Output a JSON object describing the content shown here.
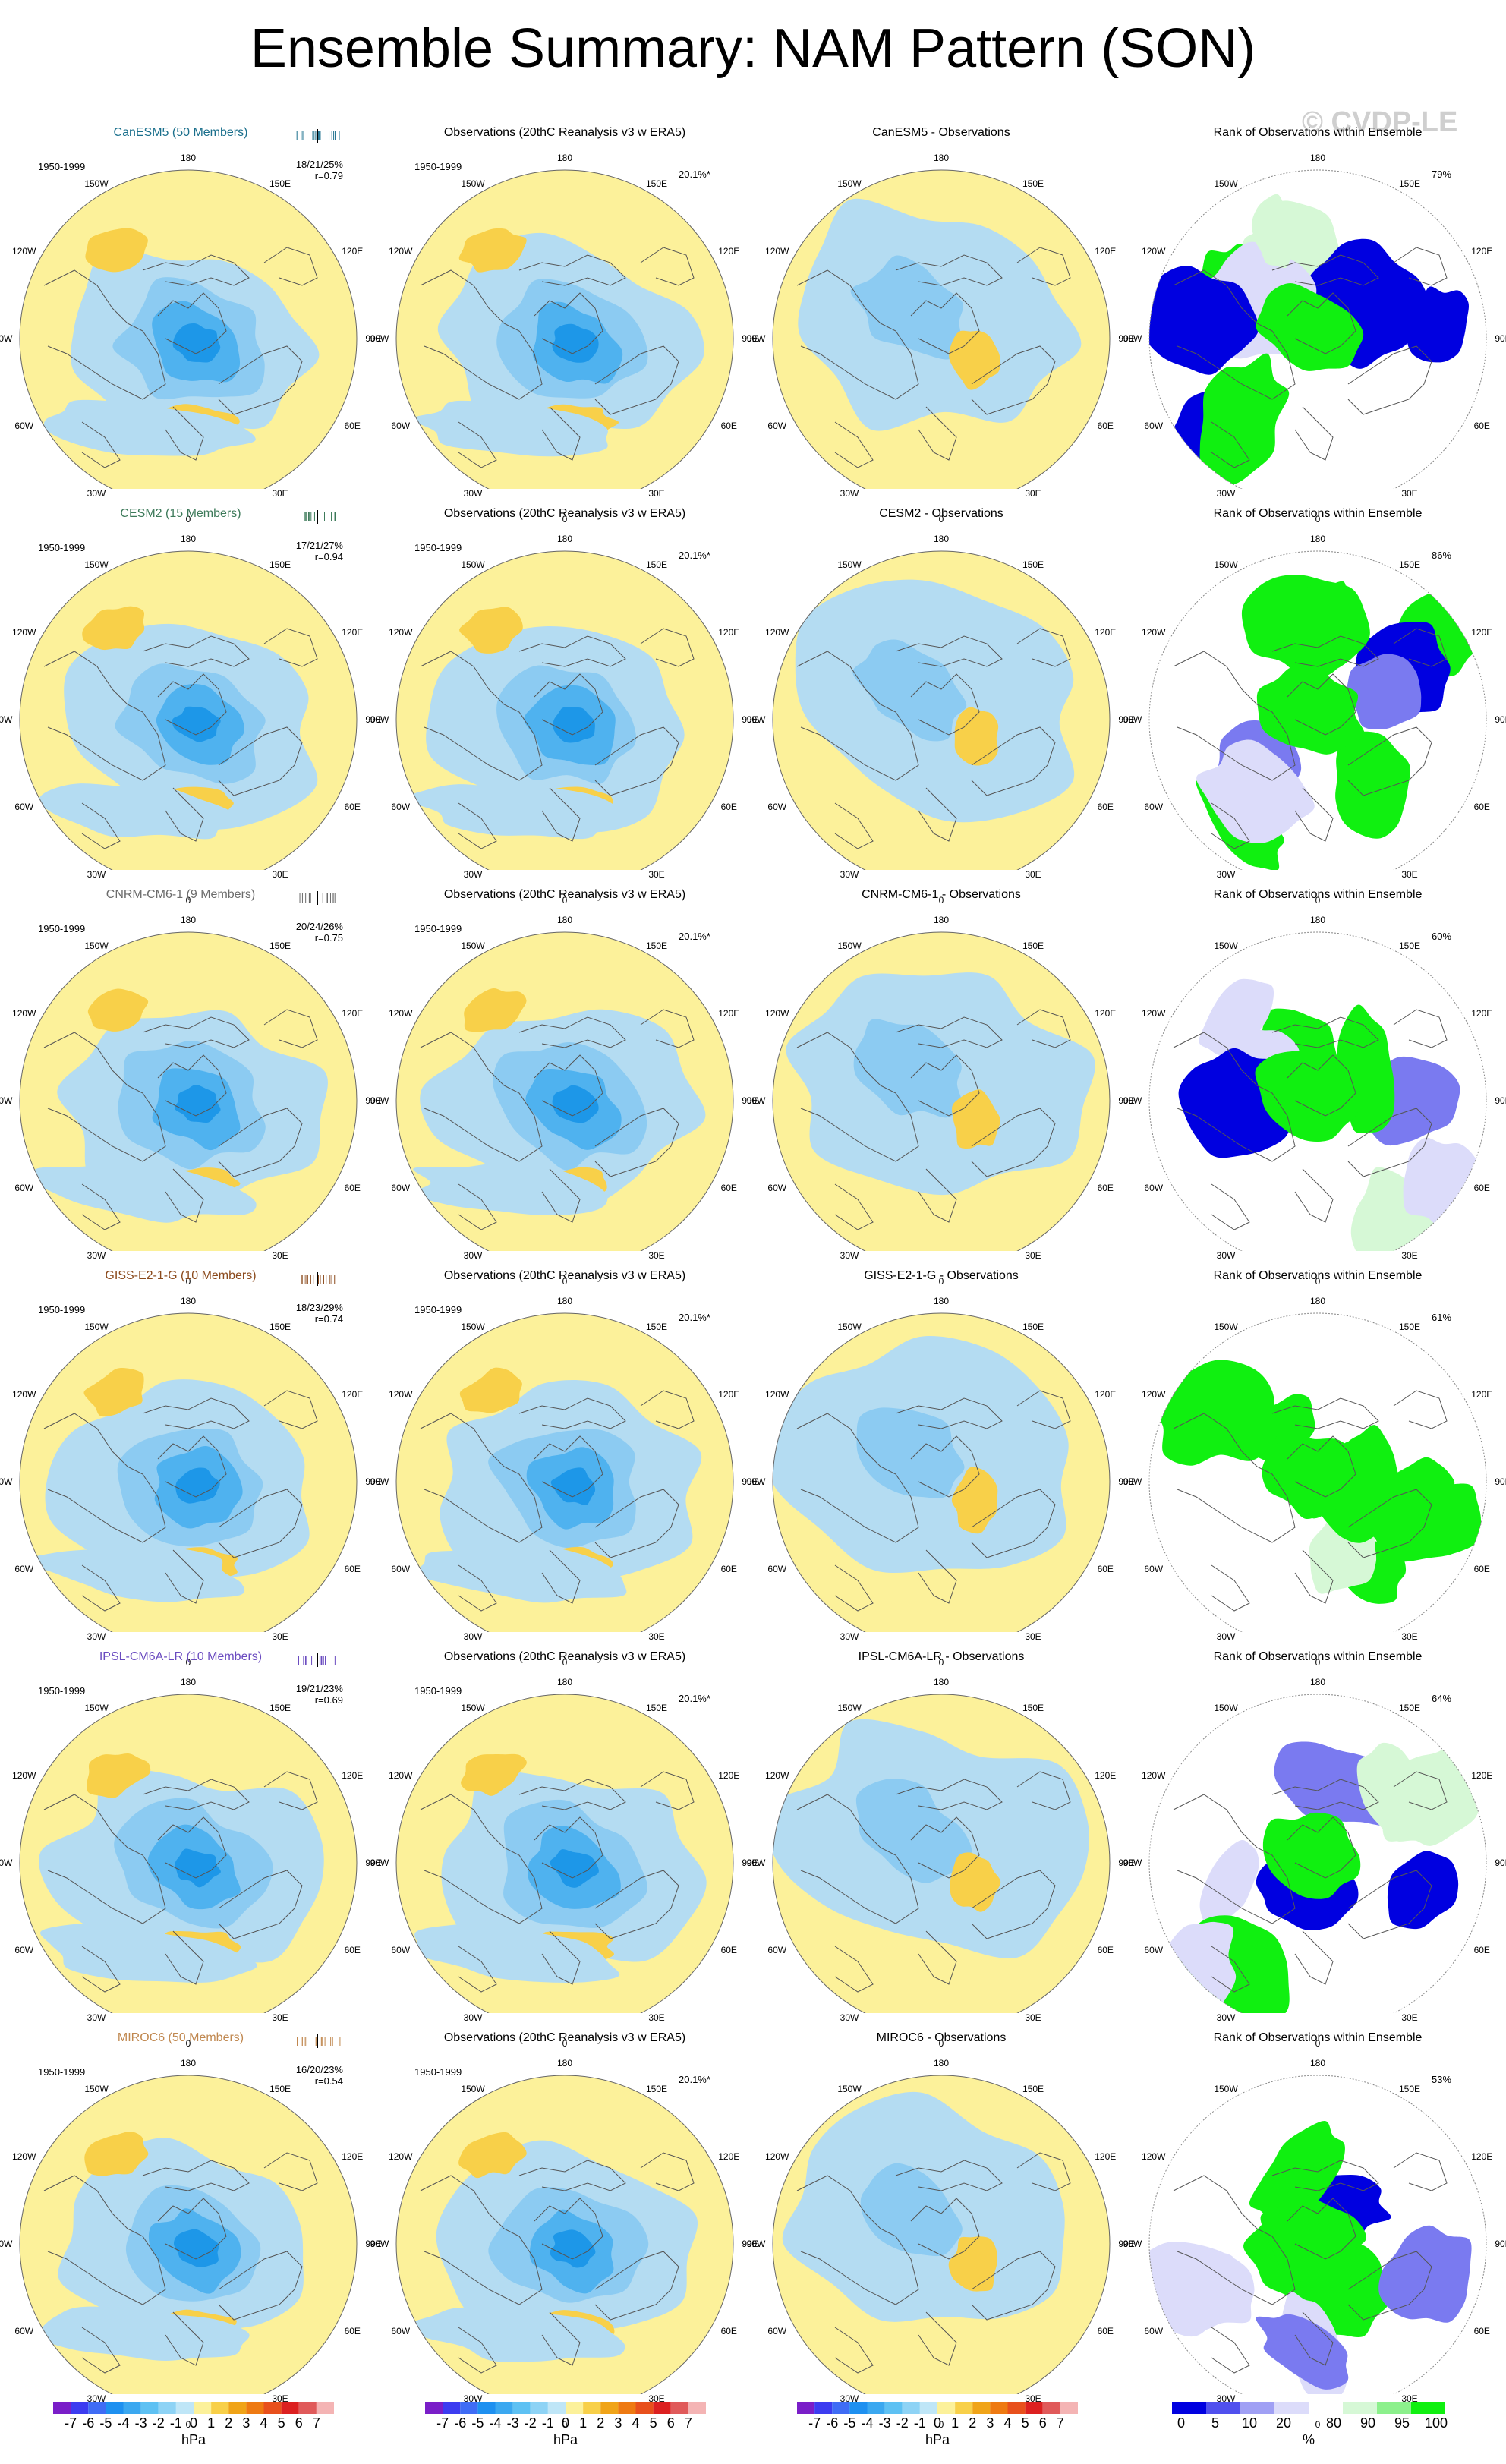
{
  "title": "Ensemble Summary: NAM Pattern (SON)",
  "watermark": "© CVDP-LE",
  "colors": {
    "positive_light": "#fcf19a",
    "negative_light": "#b4dcf2",
    "neg1": "#8ccbf2",
    "neg2": "#4fb2ef",
    "neg3": "#1d97e8",
    "pos1": "#f8d049",
    "pos2": "#f0a418",
    "rank_blue": "#0000e0",
    "rank_blue_mid": "#7a7af0",
    "rank_blue_light": "#dcdcfa",
    "rank_green": "#10f010",
    "rank_green_light": "#d6f8d6",
    "coast": "#555555"
  },
  "column_titles": {
    "obs": "Observations (20thC Reanalysis v3 w ERA5)",
    "rank": "Rank of Observations within Ensemble"
  },
  "period": "1950-1999",
  "obs_pct": "20.1%*",
  "lon_labels": {
    "top": "180",
    "bottom": "0",
    "upper_left": "150W",
    "upper_right": "150E",
    "mid_upper_left": "120W",
    "mid_upper_right": "120E",
    "left": "90W",
    "right": "90E",
    "mid_lower_left": "60W",
    "mid_lower_right": "60E",
    "lower_left": "30W",
    "lower_right": "30E"
  },
  "models": [
    {
      "name": "CanESM5 (50 Members)",
      "diff_title": "CanESM5 - Observations",
      "color": "#1a6f8c",
      "stats": "18/21/25%",
      "corr": "r=0.79",
      "rank_pct": "79%"
    },
    {
      "name": "CESM2 (15 Members)",
      "diff_title": "CESM2 - Observations",
      "color": "#3d7a5a",
      "stats": "17/21/27%",
      "corr": "r=0.94",
      "rank_pct": "86%"
    },
    {
      "name": "CNRM-CM6-1 (9 Members)",
      "diff_title": "CNRM-CM6-1 - Observations",
      "color": "#6b6b6b",
      "stats": "20/24/26%",
      "corr": "r=0.75",
      "rank_pct": "60%"
    },
    {
      "name": "GISS-E2-1-G (10 Members)",
      "diff_title": "GISS-E2-1-G - Observations",
      "color": "#8b4a1c",
      "stats": "18/23/29%",
      "corr": "r=0.74",
      "rank_pct": "61%"
    },
    {
      "name": "IPSL-CM6A-LR (10 Members)",
      "diff_title": "IPSL-CM6A-LR - Observations",
      "color": "#6a4bc0",
      "stats": "19/21/23%",
      "corr": "r=0.69",
      "rank_pct": "64%"
    },
    {
      "name": "MIROC6 (50 Members)",
      "diff_title": "MIROC6 - Observations",
      "color": "#c08850",
      "stats": "16/20/23%",
      "corr": "r=0.54",
      "rank_pct": "53%"
    }
  ],
  "colorbars": {
    "hpa": {
      "labels": [
        "-7",
        "-6",
        "-5",
        "-4",
        "-3",
        "-2",
        "-1",
        "0",
        "1",
        "2",
        "3",
        "4",
        "5",
        "6",
        "7"
      ],
      "colors": [
        "#7a1ec8",
        "#3c3cf0",
        "#3f6cf5",
        "#1e90f0",
        "#3ba8f0",
        "#5ec1f3",
        "#8ed3f5",
        "#bfe6f7",
        "#fcf19a",
        "#f8d049",
        "#f0a418",
        "#ee7a12",
        "#e8501c",
        "#dc2020",
        "#e05a5a",
        "#f4b4b4"
      ],
      "units": "hPa"
    },
    "rank": {
      "labels": [
        "0",
        "5",
        "10",
        "20",
        "80",
        "90",
        "95",
        "100"
      ],
      "colors": [
        "#0000e0",
        "#5050ee",
        "#a0a0f4",
        "#dcdcfa",
        "#ffffff",
        "#d6f8d6",
        "#8cf08c",
        "#10f010"
      ],
      "units": "%"
    }
  }
}
